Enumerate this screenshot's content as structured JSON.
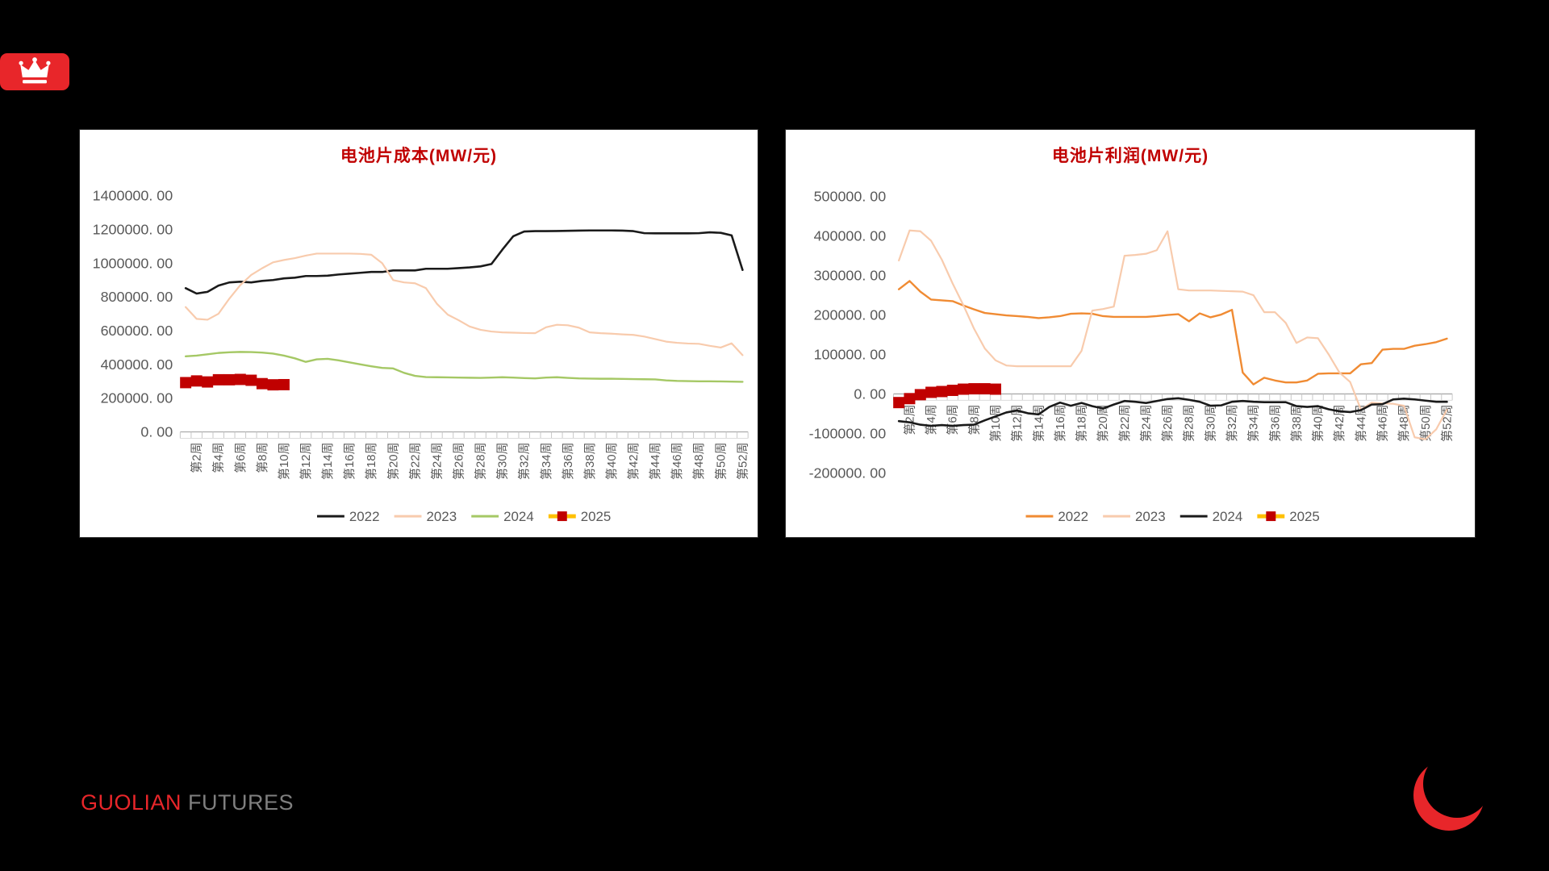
{
  "page": {
    "background": "#000000",
    "header_logo": {
      "icon": "crown-icon",
      "color": "#E8262A"
    },
    "footer": {
      "brand_primary": "GUOLIAN",
      "brand_secondary": "FUTURES",
      "primary_color": "#E8262A",
      "secondary_color": "#7F7F7F"
    },
    "corner_logo": {
      "icon": "crescent-icon",
      "color": "#E8262A"
    }
  },
  "chart_data": [
    {
      "type": "line",
      "title": "电池片成本(MW/元)",
      "title_color": "#C00000",
      "weeks": 52,
      "ylim": [
        0,
        1400000
      ],
      "ytick_step": 200000,
      "ytick_labels": [
        "1400000. 00",
        "1200000. 00",
        "1000000. 00",
        "800000. 00",
        "600000. 00",
        "400000. 00",
        "200000. 00",
        "0. 00"
      ],
      "x_labels": [
        "第2周",
        "第4周",
        "第6周",
        "第8周",
        "第10周",
        "第12周",
        "第14周",
        "第16周",
        "第18周",
        "第20周",
        "第22周",
        "第24周",
        "第26周",
        "第28周",
        "第30周",
        "第32周",
        "第34周",
        "第36周",
        "第38周",
        "第40周",
        "第42周",
        "第44周",
        "第46周",
        "第48周",
        "第50周",
        "第52周"
      ],
      "grid": false,
      "legend_position": "bottom",
      "series": [
        {
          "name": "2022",
          "color": "#1A1A1A",
          "width": 2.6,
          "values": [
            852000,
            820000,
            830000,
            867000,
            886000,
            890000,
            886000,
            895000,
            900000,
            910000,
            914000,
            924000,
            924000,
            926000,
            933000,
            938000,
            943000,
            948000,
            948000,
            957000,
            957000,
            957000,
            967000,
            967000,
            967000,
            971000,
            975000,
            981000,
            995000,
            1080000,
            1160000,
            1188000,
            1190000,
            1190000,
            1191000,
            1192000,
            1193000,
            1194000,
            1194000,
            1194000,
            1193000,
            1190000,
            1178000,
            1177000,
            1177000,
            1177000,
            1177000,
            1178000,
            1183000,
            1180000,
            1165000,
            960000
          ]
        },
        {
          "name": "2023",
          "color": "#F8CBAD",
          "width": 2.2,
          "values": [
            740000,
            670000,
            665000,
            700000,
            790000,
            870000,
            930000,
            970000,
            1005000,
            1019000,
            1030000,
            1045000,
            1057000,
            1057000,
            1057000,
            1057000,
            1055000,
            1050000,
            1000000,
            900000,
            886000,
            881000,
            852000,
            760000,
            695000,
            662000,
            625000,
            605000,
            595000,
            590000,
            588000,
            586000,
            585000,
            620000,
            635000,
            632000,
            618000,
            590000,
            585000,
            582000,
            578000,
            575000,
            565000,
            550000,
            535000,
            528000,
            524000,
            522000,
            510000,
            500000,
            525000,
            455000
          ]
        },
        {
          "name": "2024",
          "color": "#A5C865",
          "width": 2.4,
          "values": [
            448000,
            452000,
            460000,
            468000,
            472000,
            474000,
            473000,
            470000,
            464000,
            452000,
            436000,
            415000,
            430000,
            433000,
            424000,
            412000,
            400000,
            389000,
            379000,
            376000,
            350000,
            332000,
            325000,
            324000,
            323000,
            322000,
            321000,
            320000,
            322000,
            324000,
            322000,
            319000,
            317000,
            322000,
            324000,
            320000,
            317000,
            316000,
            315000,
            315000,
            314000,
            313000,
            312000,
            311000,
            305000,
            302000,
            301000,
            300000,
            300000,
            299000,
            298000,
            297000
          ]
        },
        {
          "name": "2025",
          "color": "#FFC000",
          "marker": "square",
          "marker_color": "#C00000",
          "width": 3,
          "values": [
            292000,
            302000,
            296000,
            309000,
            309000,
            311000,
            306000,
            286000,
            279000,
            280000
          ]
        }
      ]
    },
    {
      "type": "line",
      "title": "电池片利润(MW/元)",
      "title_color": "#C00000",
      "weeks": 52,
      "ylim": [
        -200000,
        500000
      ],
      "ytick_step": 100000,
      "ytick_labels": [
        "500000. 00",
        "400000. 00",
        "300000. 00",
        "200000. 00",
        "100000. 00",
        "0. 00",
        "-100000. 00",
        "-200000. 00"
      ],
      "x_labels": [
        "第2周",
        "第4周",
        "第6周",
        "第8周",
        "第10周",
        "第12周",
        "第14周",
        "第16周",
        "第18周",
        "第20周",
        "第22周",
        "第24周",
        "第26周",
        "第28周",
        "第30周",
        "第32周",
        "第34周",
        "第36周",
        "第38周",
        "第40周",
        "第42周",
        "第44周",
        "第46周",
        "第48周",
        "第50周",
        "第52周"
      ],
      "grid": false,
      "legend_position": "bottom",
      "series": [
        {
          "name": "2022",
          "color": "#F08B33",
          "width": 2.4,
          "values": [
            265000,
            286000,
            259000,
            239000,
            237000,
            235000,
            224000,
            214000,
            205000,
            202000,
            199000,
            197000,
            195000,
            192000,
            194000,
            197000,
            203000,
            204000,
            203000,
            197000,
            195000,
            195000,
            195000,
            195000,
            197000,
            200000,
            202000,
            184000,
            204000,
            194000,
            201000,
            213000,
            54000,
            24000,
            41000,
            34000,
            29000,
            29000,
            34000,
            51000,
            52000,
            52000,
            52000,
            75000,
            78000,
            112000,
            114000,
            114000,
            122000,
            126000,
            131000,
            140000
          ]
        },
        {
          "name": "2023",
          "color": "#F8CBAD",
          "width": 2.2,
          "values": [
            338000,
            414000,
            412000,
            388000,
            340000,
            280000,
            225000,
            165000,
            115000,
            85000,
            72000,
            70000,
            70000,
            70000,
            70000,
            70000,
            70000,
            109000,
            211000,
            215000,
            221000,
            350000,
            352000,
            355000,
            364000,
            412000,
            265000,
            262000,
            262000,
            262000,
            261000,
            260000,
            259000,
            250000,
            207000,
            207000,
            180000,
            129000,
            143000,
            141000,
            100000,
            54000,
            30000,
            -40000,
            -22000,
            -24000,
            -25000,
            -30000,
            -110000,
            -115000,
            -90000,
            -40000
          ]
        },
        {
          "name": "2024",
          "color": "#1A1A1A",
          "width": 2.6,
          "values": [
            -69000,
            -72000,
            -78000,
            -81000,
            -79000,
            -81000,
            -79000,
            -78000,
            -67000,
            -57000,
            -47000,
            -42000,
            -49000,
            -52000,
            -33000,
            -22000,
            -30000,
            -23000,
            -31000,
            -37000,
            -27000,
            -18000,
            -20000,
            -23000,
            -18000,
            -13000,
            -11000,
            -15000,
            -20000,
            -30000,
            -29000,
            -20000,
            -18000,
            -20000,
            -21000,
            -21000,
            -21000,
            -31000,
            -33000,
            -31000,
            -39000,
            -44000,
            -46000,
            -41000,
            -27000,
            -26000,
            -14000,
            -12000,
            -14000,
            -17000,
            -20000,
            -20000
          ]
        },
        {
          "name": "2025",
          "color": "#FFC000",
          "marker": "square",
          "marker_color": "#C00000",
          "width": 3,
          "values": [
            -22000,
            -12000,
            -2000,
            4000,
            6000,
            9000,
            12000,
            13000,
            13000,
            12000
          ]
        }
      ]
    }
  ]
}
